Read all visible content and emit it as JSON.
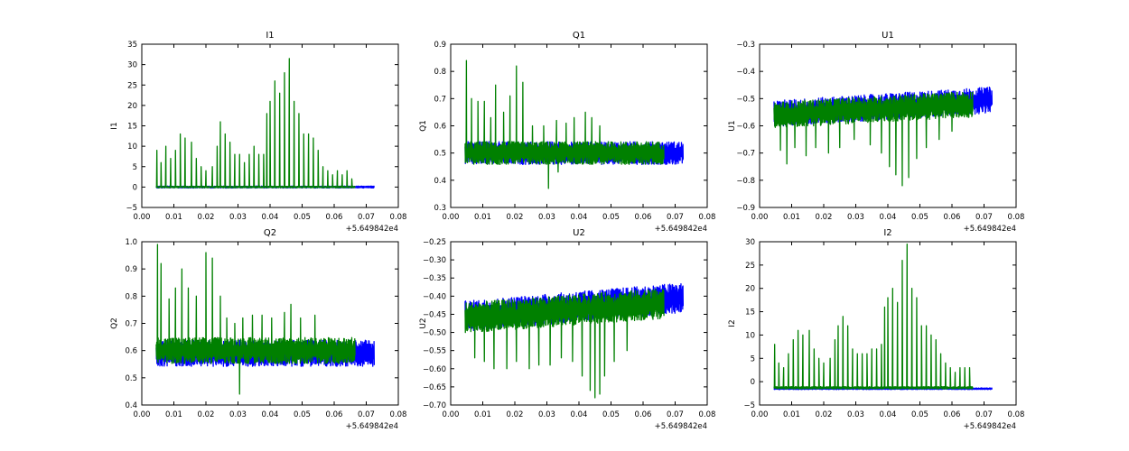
{
  "figure": {
    "colors": {
      "series_a": "#0000ff",
      "series_b": "#008000",
      "frame": "#000000"
    }
  },
  "chart_data": [
    {
      "type": "line",
      "title": "I1",
      "xlabel": "",
      "ylabel": "I1",
      "offset_label": "+5.649842e4",
      "xlim": [
        0.0,
        0.08
      ],
      "ylim": [
        -5,
        35
      ],
      "xticks": [
        "0.00",
        "0.01",
        "0.02",
        "0.03",
        "0.04",
        "0.05",
        "0.06",
        "0.07",
        "0.08"
      ],
      "yticks": [
        "−5",
        "0",
        "5",
        "10",
        "15",
        "20",
        "25",
        "30",
        "35"
      ],
      "series": [
        {
          "color": "#0000ff",
          "x_range": [
            0.0045,
            0.0725
          ],
          "baseline": 0,
          "spread": 0.4,
          "n": 700,
          "peaks": []
        },
        {
          "color": "#008000",
          "x_range": [
            0.0045,
            0.0665
          ],
          "baseline": 0,
          "spread": 0.3,
          "n": 650,
          "peaks": [
            {
              "x": 0.0047,
              "y": 9
            },
            {
              "x": 0.006,
              "y": 6
            },
            {
              "x": 0.0075,
              "y": 10
            },
            {
              "x": 0.009,
              "y": 7
            },
            {
              "x": 0.0105,
              "y": 9
            },
            {
              "x": 0.012,
              "y": 13
            },
            {
              "x": 0.0135,
              "y": 12
            },
            {
              "x": 0.0155,
              "y": 11
            },
            {
              "x": 0.017,
              "y": 7
            },
            {
              "x": 0.0185,
              "y": 5
            },
            {
              "x": 0.02,
              "y": 4
            },
            {
              "x": 0.022,
              "y": 5
            },
            {
              "x": 0.0235,
              "y": 10
            },
            {
              "x": 0.0245,
              "y": 16
            },
            {
              "x": 0.026,
              "y": 13
            },
            {
              "x": 0.0275,
              "y": 11
            },
            {
              "x": 0.029,
              "y": 8
            },
            {
              "x": 0.0305,
              "y": 8
            },
            {
              "x": 0.032,
              "y": 6
            },
            {
              "x": 0.0335,
              "y": 8
            },
            {
              "x": 0.035,
              "y": 10
            },
            {
              "x": 0.0365,
              "y": 8
            },
            {
              "x": 0.038,
              "y": 8
            },
            {
              "x": 0.039,
              "y": 18
            },
            {
              "x": 0.04,
              "y": 21
            },
            {
              "x": 0.0415,
              "y": 26
            },
            {
              "x": 0.043,
              "y": 23
            },
            {
              "x": 0.0445,
              "y": 28
            },
            {
              "x": 0.046,
              "y": 31.5
            },
            {
              "x": 0.0475,
              "y": 21
            },
            {
              "x": 0.049,
              "y": 18
            },
            {
              "x": 0.0505,
              "y": 13
            },
            {
              "x": 0.052,
              "y": 13
            },
            {
              "x": 0.0535,
              "y": 12
            },
            {
              "x": 0.055,
              "y": 9
            },
            {
              "x": 0.0565,
              "y": 5
            },
            {
              "x": 0.058,
              "y": 4
            },
            {
              "x": 0.0595,
              "y": 3
            },
            {
              "x": 0.061,
              "y": 4
            },
            {
              "x": 0.0625,
              "y": 3
            },
            {
              "x": 0.064,
              "y": 4
            },
            {
              "x": 0.0655,
              "y": 2
            }
          ]
        }
      ]
    },
    {
      "type": "line",
      "title": "Q1",
      "xlabel": "",
      "ylabel": "Q1",
      "offset_label": "+5.649842e4",
      "xlim": [
        0.0,
        0.08
      ],
      "ylim": [
        0.3,
        0.9
      ],
      "xticks": [
        "0.00",
        "0.01",
        "0.02",
        "0.03",
        "0.04",
        "0.05",
        "0.06",
        "0.07",
        "0.08"
      ],
      "yticks": [
        "0.3",
        "0.4",
        "0.5",
        "0.6",
        "0.7",
        "0.8",
        "0.9"
      ],
      "series": [
        {
          "color": "#0000ff",
          "x_range": [
            0.0045,
            0.0725
          ],
          "baseline": 0.5,
          "spread": 0.07,
          "n": 900,
          "peaks": []
        },
        {
          "color": "#008000",
          "x_range": [
            0.0045,
            0.0665
          ],
          "baseline": 0.5,
          "spread": 0.07,
          "n": 800,
          "peaks": [
            {
              "x": 0.0049,
              "y": 0.84
            },
            {
              "x": 0.0065,
              "y": 0.7
            },
            {
              "x": 0.0085,
              "y": 0.69
            },
            {
              "x": 0.0105,
              "y": 0.69
            },
            {
              "x": 0.0125,
              "y": 0.63
            },
            {
              "x": 0.014,
              "y": 0.75
            },
            {
              "x": 0.0165,
              "y": 0.65
            },
            {
              "x": 0.0185,
              "y": 0.71
            },
            {
              "x": 0.0205,
              "y": 0.82
            },
            {
              "x": 0.0225,
              "y": 0.76
            },
            {
              "x": 0.0255,
              "y": 0.6
            },
            {
              "x": 0.029,
              "y": 0.6
            },
            {
              "x": 0.033,
              "y": 0.62
            },
            {
              "x": 0.036,
              "y": 0.61
            },
            {
              "x": 0.0385,
              "y": 0.63
            },
            {
              "x": 0.042,
              "y": 0.65
            },
            {
              "x": 0.044,
              "y": 0.63
            },
            {
              "x": 0.0465,
              "y": 0.6
            },
            {
              "x": 0.0305,
              "y": 0.37
            },
            {
              "x": 0.0335,
              "y": 0.43
            }
          ]
        }
      ]
    },
    {
      "type": "line",
      "title": "U1",
      "xlabel": "",
      "ylabel": "U1",
      "offset_label": "+5.649842e4",
      "xlim": [
        0.0,
        0.08
      ],
      "ylim": [
        -0.9,
        -0.3
      ],
      "xticks": [
        "0.00",
        "0.01",
        "0.02",
        "0.03",
        "0.04",
        "0.05",
        "0.06",
        "0.07",
        "0.08"
      ],
      "yticks": [
        "−0.9",
        "−0.8",
        "−0.7",
        "−0.6",
        "−0.5",
        "−0.4",
        "−0.3"
      ],
      "series": [
        {
          "color": "#0000ff",
          "x_range": [
            0.0045,
            0.0725
          ],
          "baseline": -0.53,
          "spread": 0.08,
          "n": 900,
          "trend": 0.05,
          "peaks": []
        },
        {
          "color": "#008000",
          "x_range": [
            0.0045,
            0.0665
          ],
          "baseline": -0.54,
          "spread": 0.08,
          "n": 800,
          "trend": 0.04,
          "peaks": [
            {
              "x": 0.0065,
              "y": -0.69
            },
            {
              "x": 0.0085,
              "y": -0.74
            },
            {
              "x": 0.011,
              "y": -0.68
            },
            {
              "x": 0.0145,
              "y": -0.71
            },
            {
              "x": 0.0175,
              "y": -0.68
            },
            {
              "x": 0.0215,
              "y": -0.7
            },
            {
              "x": 0.025,
              "y": -0.68
            },
            {
              "x": 0.0295,
              "y": -0.65
            },
            {
              "x": 0.0345,
              "y": -0.67
            },
            {
              "x": 0.038,
              "y": -0.7
            },
            {
              "x": 0.0405,
              "y": -0.75
            },
            {
              "x": 0.0425,
              "y": -0.78
            },
            {
              "x": 0.0445,
              "y": -0.82
            },
            {
              "x": 0.0465,
              "y": -0.79
            },
            {
              "x": 0.049,
              "y": -0.72
            },
            {
              "x": 0.052,
              "y": -0.68
            },
            {
              "x": 0.056,
              "y": -0.65
            },
            {
              "x": 0.06,
              "y": -0.62
            }
          ]
        }
      ]
    },
    {
      "type": "line",
      "title": "Q2",
      "xlabel": "",
      "ylabel": "Q2",
      "offset_label": "+5.649842e4",
      "xlim": [
        0.0,
        0.08
      ],
      "ylim": [
        0.4,
        1.0
      ],
      "xticks": [
        "0.00",
        "0.01",
        "0.02",
        "0.03",
        "0.04",
        "0.05",
        "0.06",
        "0.07",
        "0.08"
      ],
      "yticks": [
        "0.4",
        "0.5",
        "0.6",
        "0.7",
        "0.8",
        "0.9",
        "1.0"
      ],
      "series": [
        {
          "color": "#0000ff",
          "x_range": [
            0.0045,
            0.0725
          ],
          "baseline": 0.59,
          "spread": 0.08,
          "n": 900,
          "peaks": []
        },
        {
          "color": "#008000",
          "x_range": [
            0.0045,
            0.0665
          ],
          "baseline": 0.6,
          "spread": 0.08,
          "n": 800,
          "peaks": [
            {
              "x": 0.0049,
              "y": 0.99
            },
            {
              "x": 0.006,
              "y": 0.92
            },
            {
              "x": 0.0085,
              "y": 0.79
            },
            {
              "x": 0.0105,
              "y": 0.83
            },
            {
              "x": 0.0125,
              "y": 0.9
            },
            {
              "x": 0.0145,
              "y": 0.83
            },
            {
              "x": 0.017,
              "y": 0.8
            },
            {
              "x": 0.02,
              "y": 0.96
            },
            {
              "x": 0.022,
              "y": 0.94
            },
            {
              "x": 0.0245,
              "y": 0.8
            },
            {
              "x": 0.0265,
              "y": 0.72
            },
            {
              "x": 0.029,
              "y": 0.7
            },
            {
              "x": 0.0315,
              "y": 0.72
            },
            {
              "x": 0.0345,
              "y": 0.73
            },
            {
              "x": 0.0375,
              "y": 0.73
            },
            {
              "x": 0.0405,
              "y": 0.72
            },
            {
              "x": 0.0445,
              "y": 0.74
            },
            {
              "x": 0.0465,
              "y": 0.77
            },
            {
              "x": 0.0495,
              "y": 0.72
            },
            {
              "x": 0.054,
              "y": 0.73
            },
            {
              "x": 0.0305,
              "y": 0.44
            }
          ]
        }
      ]
    },
    {
      "type": "line",
      "title": "U2",
      "xlabel": "",
      "ylabel": "U2",
      "offset_label": "+5.649842e4",
      "xlim": [
        0.0,
        0.08
      ],
      "ylim": [
        -0.7,
        -0.25
      ],
      "xticks": [
        "0.00",
        "0.01",
        "0.02",
        "0.03",
        "0.04",
        "0.05",
        "0.06",
        "0.07",
        "0.08"
      ],
      "yticks": [
        "−0.70",
        "−0.65",
        "−0.60",
        "−0.55",
        "−0.50",
        "−0.45",
        "−0.40",
        "−0.35",
        "−0.30",
        "−0.25"
      ],
      "series": [
        {
          "color": "#0000ff",
          "x_range": [
            0.0045,
            0.0725
          ],
          "baseline": -0.43,
          "spread": 0.07,
          "n": 900,
          "trend": 0.05,
          "peaks": []
        },
        {
          "color": "#008000",
          "x_range": [
            0.0045,
            0.0665
          ],
          "baseline": -0.44,
          "spread": 0.07,
          "n": 800,
          "trend": 0.04,
          "peaks": [
            {
              "x": 0.0075,
              "y": -0.57
            },
            {
              "x": 0.0105,
              "y": -0.58
            },
            {
              "x": 0.0135,
              "y": -0.6
            },
            {
              "x": 0.0175,
              "y": -0.6
            },
            {
              "x": 0.0205,
              "y": -0.58
            },
            {
              "x": 0.0245,
              "y": -0.6
            },
            {
              "x": 0.0275,
              "y": -0.59
            },
            {
              "x": 0.031,
              "y": -0.59
            },
            {
              "x": 0.0345,
              "y": -0.57
            },
            {
              "x": 0.038,
              "y": -0.58
            },
            {
              "x": 0.041,
              "y": -0.62
            },
            {
              "x": 0.0435,
              "y": -0.66
            },
            {
              "x": 0.045,
              "y": -0.68
            },
            {
              "x": 0.0465,
              "y": -0.67
            },
            {
              "x": 0.048,
              "y": -0.62
            },
            {
              "x": 0.051,
              "y": -0.58
            },
            {
              "x": 0.055,
              "y": -0.55
            }
          ]
        }
      ]
    },
    {
      "type": "line",
      "title": "I2",
      "xlabel": "",
      "ylabel": "I2",
      "offset_label": "+5.649842e4",
      "xlim": [
        0.0,
        0.08
      ],
      "ylim": [
        -5,
        30
      ],
      "xticks": [
        "0.00",
        "0.01",
        "0.02",
        "0.03",
        "0.04",
        "0.05",
        "0.06",
        "0.07",
        "0.08"
      ],
      "yticks": [
        "−5",
        "0",
        "5",
        "10",
        "15",
        "20",
        "25",
        "30"
      ],
      "series": [
        {
          "color": "#0000ff",
          "x_range": [
            0.0045,
            0.0725
          ],
          "baseline": -1.5,
          "spread": 0.3,
          "n": 700,
          "peaks": []
        },
        {
          "color": "#008000",
          "x_range": [
            0.0045,
            0.0665
          ],
          "baseline": -1.3,
          "spread": 0.4,
          "n": 650,
          "peaks": [
            {
              "x": 0.0047,
              "y": 8
            },
            {
              "x": 0.006,
              "y": 4
            },
            {
              "x": 0.0075,
              "y": 3
            },
            {
              "x": 0.009,
              "y": 6
            },
            {
              "x": 0.0105,
              "y": 9
            },
            {
              "x": 0.012,
              "y": 11
            },
            {
              "x": 0.0135,
              "y": 10
            },
            {
              "x": 0.0155,
              "y": 11
            },
            {
              "x": 0.017,
              "y": 7
            },
            {
              "x": 0.0185,
              "y": 5
            },
            {
              "x": 0.02,
              "y": 4
            },
            {
              "x": 0.022,
              "y": 5
            },
            {
              "x": 0.0235,
              "y": 9
            },
            {
              "x": 0.0245,
              "y": 12
            },
            {
              "x": 0.026,
              "y": 14
            },
            {
              "x": 0.0275,
              "y": 12
            },
            {
              "x": 0.029,
              "y": 7
            },
            {
              "x": 0.0305,
              "y": 6
            },
            {
              "x": 0.032,
              "y": 6
            },
            {
              "x": 0.0335,
              "y": 6
            },
            {
              "x": 0.035,
              "y": 7
            },
            {
              "x": 0.0365,
              "y": 7
            },
            {
              "x": 0.038,
              "y": 8
            },
            {
              "x": 0.039,
              "y": 16
            },
            {
              "x": 0.04,
              "y": 18
            },
            {
              "x": 0.0415,
              "y": 20
            },
            {
              "x": 0.043,
              "y": 17
            },
            {
              "x": 0.0445,
              "y": 26
            },
            {
              "x": 0.046,
              "y": 29.5
            },
            {
              "x": 0.0475,
              "y": 20
            },
            {
              "x": 0.049,
              "y": 18
            },
            {
              "x": 0.0505,
              "y": 12
            },
            {
              "x": 0.052,
              "y": 12
            },
            {
              "x": 0.0535,
              "y": 10
            },
            {
              "x": 0.055,
              "y": 9
            },
            {
              "x": 0.0565,
              "y": 6
            },
            {
              "x": 0.058,
              "y": 4
            },
            {
              "x": 0.0595,
              "y": 3
            },
            {
              "x": 0.061,
              "y": 2
            },
            {
              "x": 0.0625,
              "y": 3
            },
            {
              "x": 0.064,
              "y": 3
            },
            {
              "x": 0.0655,
              "y": 3
            }
          ]
        }
      ]
    }
  ]
}
